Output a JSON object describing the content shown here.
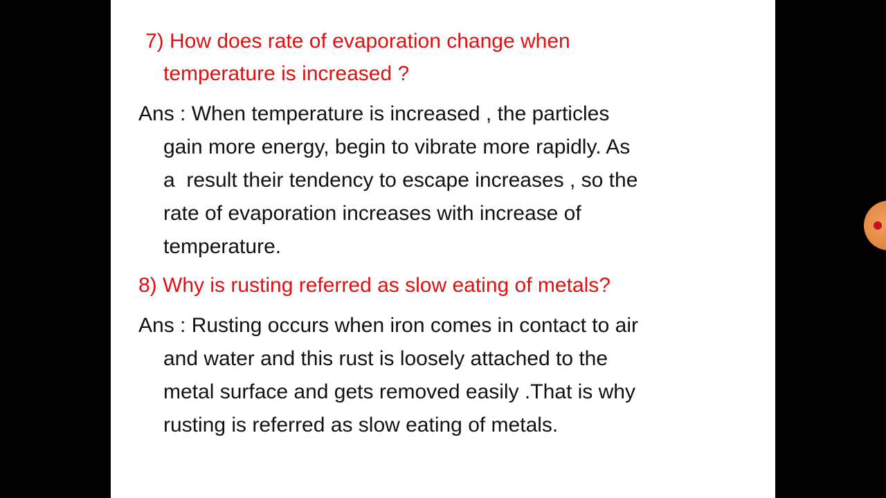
{
  "blocks": [
    {
      "kind": "question",
      "lines": [
        "7) How does rate of evaporation change when",
        "temperature is increased ?"
      ]
    },
    {
      "kind": "answer",
      "lines": [
        "Ans : When temperature is increased , the particles",
        "gain more energy, begin to vibrate more rapidly. As",
        "a  result their tendency to escape increases , so the",
        "rate of evaporation increases with increase of",
        "temperature."
      ]
    },
    {
      "kind": "question",
      "lines": [
        "8) Why is rusting referred as slow eating of metals?"
      ]
    },
    {
      "kind": "answer",
      "lines": [
        "Ans : Rusting occurs when iron comes in contact to air",
        "and water and this rust is loosely attached to the",
        "metal surface and gets removed easily .That is why",
        "rusting is referred as slow eating of metals."
      ]
    }
  ]
}
